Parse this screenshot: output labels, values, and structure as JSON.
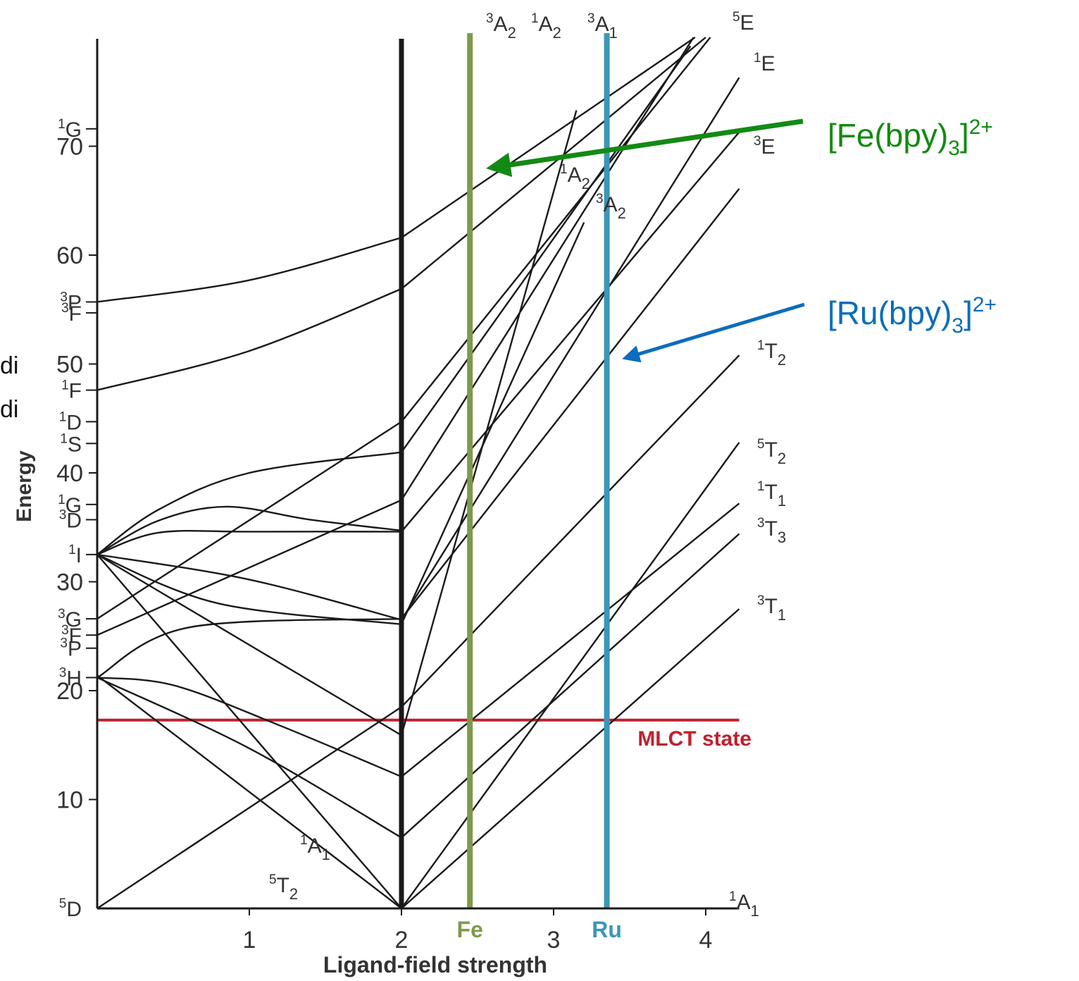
{
  "chart_data": {
    "type": "line",
    "xlabel": "Ligand-field strength",
    "ylabel": "Energy",
    "x_ticks": [
      "1",
      "2",
      "3",
      "4"
    ],
    "y_ticks": [
      "10",
      "20",
      "30",
      "40",
      "50",
      "60",
      "70"
    ],
    "xlim": [
      0,
      4.25
    ],
    "ylim": [
      0,
      80
    ],
    "left_terms": [
      {
        "sup": "1",
        "base": "G",
        "y": 71.6
      },
      {
        "sup": "3",
        "base": "P",
        "y": 55.7
      },
      {
        "sup": "3",
        "base": "F",
        "y": 54.7
      },
      {
        "sup": "1",
        "base": "F",
        "y": 47.6
      },
      {
        "sup": "1",
        "base": "D",
        "y": 44.7
      },
      {
        "sup": "1",
        "base": "S",
        "y": 42.7
      },
      {
        "sup": "1",
        "base": "G",
        "y": 37.1
      },
      {
        "sup": "3",
        "base": "D",
        "y": 35.7
      },
      {
        "sup": "1",
        "base": "I",
        "y": 32.5
      },
      {
        "sup": "3",
        "base": "G",
        "y": 26.6
      },
      {
        "sup": "3",
        "base": "F",
        "y": 25.1
      },
      {
        "sup": "3",
        "base": "P",
        "y": 23.9
      },
      {
        "sup": "3",
        "base": "H",
        "y": 21.2
      },
      {
        "sup": "5",
        "base": "D",
        "y": 0
      }
    ],
    "right_terms": [
      {
        "sup": "3",
        "base": "A",
        "sub": "2"
      },
      {
        "sup": "1",
        "base": "A",
        "sub": "2"
      },
      {
        "sup": "3",
        "base": "A",
        "sub": "1"
      },
      {
        "sup": "5",
        "base": "E",
        "sub": ""
      },
      {
        "sup": "1",
        "base": "E",
        "sub": ""
      },
      {
        "sup": "3",
        "base": "E",
        "sub": ""
      },
      {
        "sup": "1",
        "base": "A",
        "sub": "2"
      },
      {
        "sup": "3",
        "base": "A",
        "sub": "2"
      },
      {
        "sup": "1",
        "base": "T",
        "sub": "2"
      },
      {
        "sup": "5",
        "base": "T",
        "sub": "2"
      },
      {
        "sup": "1",
        "base": "T",
        "sub": "1"
      },
      {
        "sup": "3",
        "base": "T",
        "sub": "3"
      },
      {
        "sup": "3",
        "base": "T",
        "sub": "1"
      },
      {
        "sup": "1",
        "base": "A",
        "sub": "1"
      }
    ],
    "low_terms": [
      {
        "sup": "1",
        "base": "A",
        "sub": "1"
      },
      {
        "sup": "5",
        "base": "T",
        "sub": "2"
      }
    ],
    "curves": [
      {
        "name": "",
        "points": [
          [
            0,
            55.7
          ],
          [
            1,
            57.7
          ],
          [
            2,
            61.6
          ]
        ]
      },
      {
        "name": "",
        "points": [
          [
            0,
            47.6
          ],
          [
            1,
            51.2
          ],
          [
            2,
            56.9
          ]
        ]
      },
      {
        "name": "",
        "points": [
          [
            0,
            32.5
          ],
          [
            0.4,
            36.6
          ],
          [
            1,
            40.0
          ],
          [
            2,
            41.9
          ]
        ]
      },
      {
        "name": "",
        "points": [
          [
            0,
            32.5
          ],
          [
            0.4,
            35.6
          ],
          [
            0.85,
            36.9
          ],
          [
            1.4,
            35.7
          ],
          [
            2,
            34.7
          ]
        ]
      },
      {
        "name": "",
        "points": [
          [
            0,
            32.5
          ],
          [
            0.4,
            34.5
          ],
          [
            1,
            34.6
          ],
          [
            2,
            34.6
          ]
        ]
      },
      {
        "name": "",
        "points": [
          [
            0,
            32.5
          ],
          [
            1,
            30.2
          ],
          [
            2,
            26.5
          ]
        ]
      },
      {
        "name": "",
        "points": [
          [
            0,
            32.5
          ],
          [
            0.8,
            28.0
          ],
          [
            2,
            26.1
          ]
        ]
      },
      {
        "name": "",
        "points": [
          [
            0,
            21.2
          ],
          [
            0.6,
            25.8
          ],
          [
            2,
            26.6
          ]
        ]
      },
      {
        "name": "",
        "points": [
          [
            0,
            21.2
          ],
          [
            0.5,
            20.5
          ],
          [
            1.2,
            16.8
          ],
          [
            2,
            12.1
          ]
        ]
      },
      {
        "name": "",
        "points": [
          [
            0,
            21.2
          ],
          [
            1,
            14.7
          ],
          [
            2,
            6.5
          ]
        ]
      },
      {
        "name": "",
        "points": [
          [
            0,
            26.6
          ],
          [
            2,
            44.7
          ]
        ]
      },
      {
        "name": "",
        "points": [
          [
            0,
            25.1
          ],
          [
            2,
            37.5
          ]
        ]
      },
      {
        "name": "",
        "points": [
          [
            0,
            0
          ],
          [
            2,
            18.5
          ]
        ]
      },
      {
        "name": "",
        "points": [
          [
            0,
            32.5
          ],
          [
            2,
            15.9
          ]
        ]
      },
      {
        "name": "",
        "points": [
          [
            0,
            32.5
          ],
          [
            2,
            0
          ]
        ]
      },
      {
        "name": "",
        "points": [
          [
            0,
            21.4
          ],
          [
            2,
            0
          ]
        ]
      },
      {
        "name": "",
        "points": [
          [
            2,
            61.6
          ],
          [
            3.93,
            80
          ]
        ]
      },
      {
        "name": "",
        "points": [
          [
            2,
            56.9
          ],
          [
            4.0,
            80
          ]
        ]
      },
      {
        "name": "",
        "points": [
          [
            2,
            44.7
          ],
          [
            4.03,
            80
          ]
        ]
      },
      {
        "name": "",
        "points": [
          [
            2,
            41.9
          ],
          [
            3.9,
            79.2
          ]
        ]
      },
      {
        "name": "",
        "points": [
          [
            2,
            37.5
          ],
          [
            3.92,
            80
          ]
        ]
      },
      {
        "name": "",
        "points": [
          [
            2,
            34.6
          ],
          [
            4.22,
            71.3
          ]
        ]
      },
      {
        "name": "",
        "points": [
          [
            2,
            26.6
          ],
          [
            4.22,
            66.1
          ]
        ]
      },
      {
        "name": "",
        "points": [
          [
            2,
            26.5
          ],
          [
            4.22,
            76.3
          ]
        ]
      },
      {
        "name": "",
        "points": [
          [
            2,
            26.1
          ],
          [
            3.2,
            63.0
          ]
        ]
      },
      {
        "name": "",
        "points": [
          [
            2,
            18.5
          ],
          [
            4.22,
            50.8
          ]
        ]
      },
      {
        "name": "",
        "points": [
          [
            2,
            15.9
          ],
          [
            3.15,
            73.3
          ]
        ]
      },
      {
        "name": "",
        "points": [
          [
            2,
            12.1
          ],
          [
            4.22,
            37.2
          ]
        ]
      },
      {
        "name": "",
        "points": [
          [
            2,
            6.5
          ],
          [
            4.22,
            34.4
          ]
        ]
      },
      {
        "name": "",
        "points": [
          [
            2,
            0
          ],
          [
            4.22,
            42.8
          ]
        ]
      },
      {
        "name": "",
        "points": [
          [
            2,
            0
          ],
          [
            4.22,
            27.5
          ]
        ]
      },
      {
        "name": "",
        "points": [
          [
            2,
            0
          ],
          [
            4.22,
            0
          ]
        ]
      }
    ],
    "vertical_lines": [
      {
        "label": "",
        "x": 2.0,
        "color": "#1a1a1a"
      },
      {
        "label": "Fe",
        "x": 2.45,
        "color": "#7d9a4b"
      },
      {
        "label": "Ru",
        "x": 3.35,
        "color": "#3b96b6"
      }
    ],
    "mlct": {
      "label": "MLCT state",
      "y": 17.3,
      "color": "#c0202d"
    },
    "annotations": [
      {
        "label": "[Fe(bpy)",
        "sub": "3",
        "sup": "2+",
        "color": "#138a13"
      },
      {
        "label": "[Ru(bpy)",
        "sub": "3",
        "sup": "2+",
        "color": "#0b6dbd"
      }
    ],
    "clipped_text": [
      "di",
      "di"
    ]
  }
}
